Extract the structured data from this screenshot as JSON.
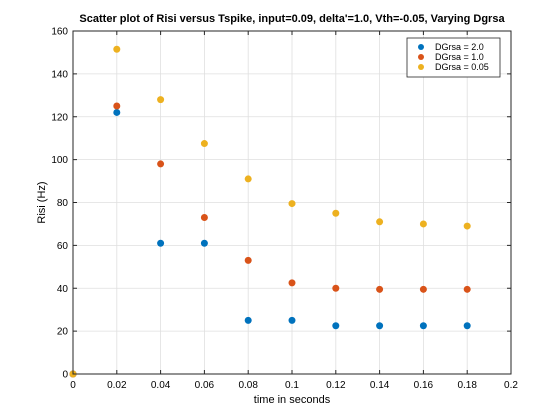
{
  "chart_data": {
    "type": "scatter",
    "title": "Scatter plot of Risi versus Tspike, input=0.09, delta'=1.0, Vth=-0.05, Varying Dgrsa",
    "xlabel": "time in seconds",
    "ylabel": "Risi (Hz)",
    "xlim": [
      0,
      0.2
    ],
    "ylim": [
      0,
      160
    ],
    "xticks": [
      0,
      0.02,
      0.04,
      0.06,
      0.08,
      0.1,
      0.12,
      0.14,
      0.16,
      0.18,
      0.2
    ],
    "yticks": [
      0,
      20,
      40,
      60,
      80,
      100,
      120,
      140,
      160
    ],
    "xtick_labels": [
      "0",
      "0.02",
      "0.04",
      "0.06",
      "0.08",
      "0.1",
      "0.12",
      "0.14",
      "0.16",
      "0.18",
      "0.2"
    ],
    "ytick_labels": [
      "0",
      "20",
      "40",
      "60",
      "80",
      "100",
      "120",
      "140",
      "160"
    ],
    "grid": true,
    "legend_position": "top-right",
    "series": [
      {
        "name": "DGrsa = 2.0",
        "color": "#0072BD",
        "points": [
          {
            "x": 0,
            "y": 0
          },
          {
            "x": 0.02,
            "y": 122
          },
          {
            "x": 0.04,
            "y": 61
          },
          {
            "x": 0.06,
            "y": 61
          },
          {
            "x": 0.08,
            "y": 25
          },
          {
            "x": 0.1,
            "y": 25
          },
          {
            "x": 0.12,
            "y": 22.5
          },
          {
            "x": 0.14,
            "y": 22.5
          },
          {
            "x": 0.16,
            "y": 22.5
          },
          {
            "x": 0.18,
            "y": 22.5
          }
        ]
      },
      {
        "name": "DGrsa = 1.0",
        "color": "#D95319",
        "points": [
          {
            "x": 0,
            "y": 0
          },
          {
            "x": 0.02,
            "y": 125
          },
          {
            "x": 0.04,
            "y": 98
          },
          {
            "x": 0.06,
            "y": 73
          },
          {
            "x": 0.08,
            "y": 53
          },
          {
            "x": 0.1,
            "y": 42.5
          },
          {
            "x": 0.12,
            "y": 40
          },
          {
            "x": 0.14,
            "y": 39.5
          },
          {
            "x": 0.16,
            "y": 39.5
          },
          {
            "x": 0.18,
            "y": 39.5
          }
        ]
      },
      {
        "name": "DGrsa = 0.05",
        "color": "#EDB120",
        "points": [
          {
            "x": 0,
            "y": 0
          },
          {
            "x": 0.02,
            "y": 151.5
          },
          {
            "x": 0.04,
            "y": 128
          },
          {
            "x": 0.06,
            "y": 107.5
          },
          {
            "x": 0.08,
            "y": 91
          },
          {
            "x": 0.1,
            "y": 79.5
          },
          {
            "x": 0.12,
            "y": 75
          },
          {
            "x": 0.14,
            "y": 71
          },
          {
            "x": 0.16,
            "y": 70
          },
          {
            "x": 0.18,
            "y": 69
          }
        ]
      }
    ]
  }
}
